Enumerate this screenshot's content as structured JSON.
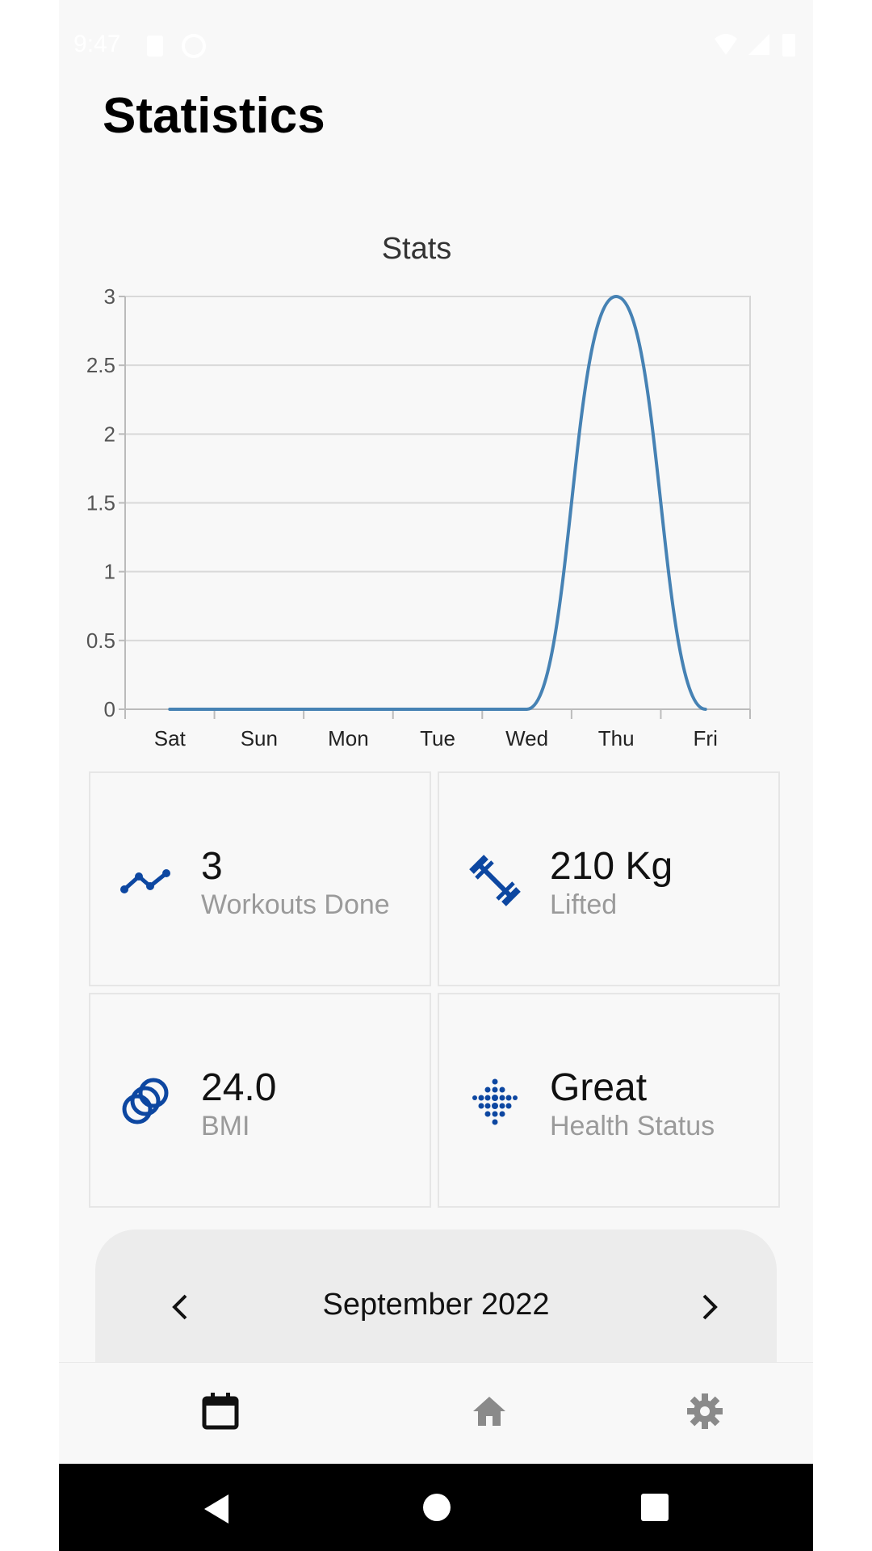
{
  "status_bar": {
    "time": "9:47"
  },
  "page": {
    "title": "Statistics"
  },
  "chart_data": {
    "type": "line",
    "title": "Stats",
    "categories": [
      "Sat",
      "Sun",
      "Mon",
      "Tue",
      "Wed",
      "Thu",
      "Fri"
    ],
    "values": [
      0,
      0,
      0,
      0,
      0,
      3,
      0
    ],
    "ylim": [
      0,
      3
    ],
    "yticks": [
      "0",
      "0.5",
      "1",
      "1.5",
      "2",
      "2.5",
      "3"
    ],
    "grid": true,
    "color": "#4682b4"
  },
  "stats": [
    {
      "value": "3",
      "label": "Workouts Done",
      "icon": "trend-line-icon"
    },
    {
      "value": "210 Kg",
      "label": "Lifted",
      "icon": "dumbbell-icon"
    },
    {
      "value": "24.0",
      "label": "BMI",
      "icon": "rings-icon"
    },
    {
      "value": "Great",
      "label": "Health Status",
      "icon": "dots-heart-icon"
    }
  ],
  "calendar": {
    "month_label": "September 2022"
  },
  "bottom_nav": [
    {
      "name": "calendar",
      "icon": "calendar-icon",
      "active": true
    },
    {
      "name": "home",
      "icon": "home-icon",
      "active": false
    },
    {
      "name": "settings",
      "icon": "gear-icon",
      "active": false
    }
  ],
  "colors": {
    "accent": "#0d47a1",
    "line": "#4682b4",
    "panel": "#ececec"
  }
}
